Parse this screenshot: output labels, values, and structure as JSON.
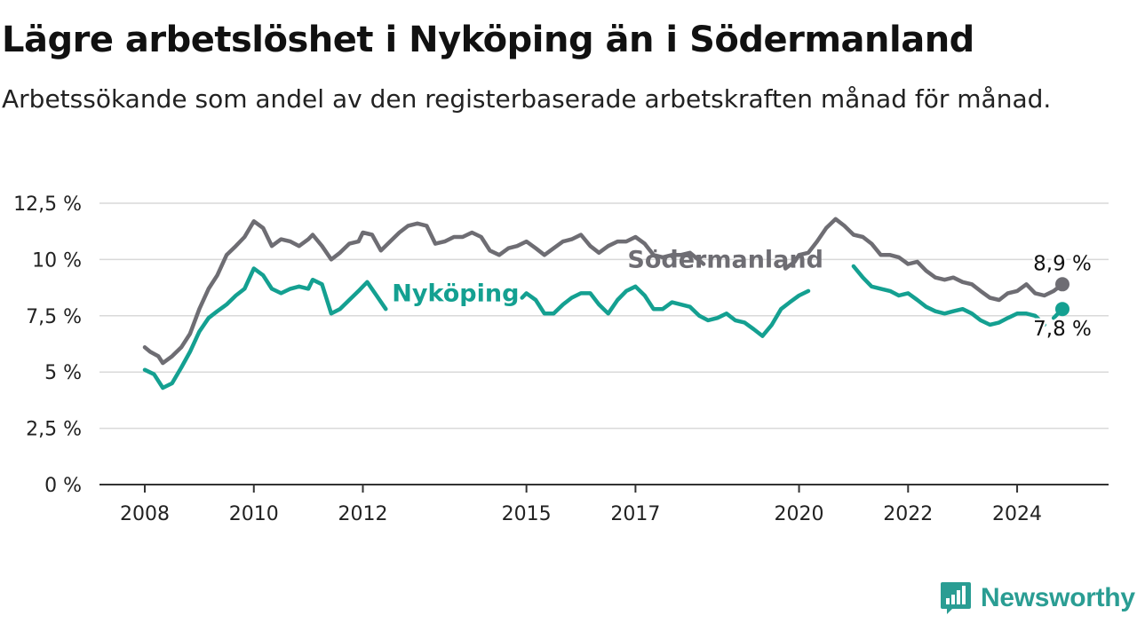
{
  "header": {
    "title": "Lägre arbetslöshet i Nyköping än i Södermanland",
    "subtitle": "Arbetssökande som andel av den registerbaserade arbetskraften månad för månad."
  },
  "brand": {
    "name": "Newsworthy",
    "color": "#2a9d93",
    "icon": "bar-chart-speech-bubble-icon"
  },
  "colors": {
    "sodermanland": "#6e6d73",
    "nykoping": "#14a091",
    "grid": "#d9d9d9",
    "axis": "#333333"
  },
  "chart_data": {
    "type": "line",
    "xlim": [
      2008,
      2025
    ],
    "ylim": [
      0,
      12.5
    ],
    "y_ticks": [
      0,
      2.5,
      5,
      7.5,
      10,
      12.5
    ],
    "y_tick_labels": [
      "0 %",
      "2,5 %",
      "5 %",
      "7,5 %",
      "10 %",
      "12,5 %"
    ],
    "x_ticks": [
      2008,
      2010,
      2012,
      2015,
      2017,
      2020,
      2022,
      2024
    ],
    "x_tick_labels": [
      "2008",
      "2010",
      "2012",
      "2015",
      "2017",
      "2020",
      "2022",
      "2024"
    ],
    "grid": "horizontal",
    "series": [
      {
        "name": "Södermanland",
        "color_key": "sodermanland",
        "end_label": "8,9 %",
        "points": [
          [
            2008.0,
            6.1
          ],
          [
            2008.1,
            5.9
          ],
          [
            2008.25,
            5.7
          ],
          [
            2008.33,
            5.4
          ],
          [
            2008.5,
            5.7
          ],
          [
            2008.67,
            6.1
          ],
          [
            2008.83,
            6.7
          ],
          [
            2009.0,
            7.8
          ],
          [
            2009.17,
            8.7
          ],
          [
            2009.33,
            9.3
          ],
          [
            2009.5,
            10.2
          ],
          [
            2009.67,
            10.6
          ],
          [
            2009.83,
            11.0
          ],
          [
            2010.0,
            11.7
          ],
          [
            2010.17,
            11.4
          ],
          [
            2010.33,
            10.6
          ],
          [
            2010.5,
            10.9
          ],
          [
            2010.67,
            10.8
          ],
          [
            2010.83,
            10.6
          ],
          [
            2011.0,
            10.9
          ],
          [
            2011.08,
            11.1
          ],
          [
            2011.25,
            10.6
          ],
          [
            2011.42,
            10.0
          ],
          [
            2011.58,
            10.3
          ],
          [
            2011.75,
            10.7
          ],
          [
            2011.92,
            10.8
          ],
          [
            2012.0,
            11.2
          ],
          [
            2012.17,
            11.1
          ],
          [
            2012.33,
            10.4
          ],
          [
            2012.5,
            10.8
          ],
          [
            2012.67,
            11.2
          ],
          [
            2012.83,
            11.5
          ],
          [
            2013.0,
            11.6
          ],
          [
            2013.17,
            11.5
          ],
          [
            2013.33,
            10.7
          ],
          [
            2013.5,
            10.8
          ],
          [
            2013.67,
            11.0
          ],
          [
            2013.83,
            11.0
          ],
          [
            2014.0,
            11.2
          ],
          [
            2014.17,
            11.0
          ],
          [
            2014.33,
            10.4
          ],
          [
            2014.5,
            10.2
          ],
          [
            2014.67,
            10.5
          ],
          [
            2014.83,
            10.6
          ],
          [
            2015.0,
            10.8
          ],
          [
            2015.17,
            10.5
          ],
          [
            2015.33,
            10.2
          ],
          [
            2015.5,
            10.5
          ],
          [
            2015.67,
            10.8
          ],
          [
            2015.83,
            10.9
          ],
          [
            2016.0,
            11.1
          ],
          [
            2016.17,
            10.6
          ],
          [
            2016.33,
            10.3
          ],
          [
            2016.5,
            10.6
          ],
          [
            2016.67,
            10.8
          ],
          [
            2016.83,
            10.8
          ],
          [
            2017.0,
            11.0
          ],
          [
            2017.17,
            10.7
          ],
          [
            2017.33,
            10.2
          ],
          [
            2017.5,
            10.1
          ],
          [
            2017.67,
            10.2
          ],
          [
            2017.83,
            10.2
          ],
          [
            2018.0,
            10.3
          ],
          [
            2018.1,
            10.1
          ],
          [
            2018.25,
            9.8
          ],
          null,
          [
            2019.75,
            9.6
          ],
          [
            2019.92,
            9.9
          ],
          [
            2020.0,
            10.2
          ],
          [
            2020.17,
            10.3
          ],
          [
            2020.33,
            10.8
          ],
          [
            2020.5,
            11.4
          ],
          [
            2020.67,
            11.8
          ],
          [
            2020.83,
            11.5
          ],
          [
            2021.0,
            11.1
          ],
          [
            2021.17,
            11.0
          ],
          [
            2021.33,
            10.7
          ],
          [
            2021.5,
            10.2
          ],
          [
            2021.67,
            10.2
          ],
          [
            2021.83,
            10.1
          ],
          [
            2022.0,
            9.8
          ],
          [
            2022.17,
            9.9
          ],
          [
            2022.33,
            9.5
          ],
          [
            2022.5,
            9.2
          ],
          [
            2022.67,
            9.1
          ],
          [
            2022.83,
            9.2
          ],
          [
            2023.0,
            9.0
          ],
          [
            2023.17,
            8.9
          ],
          [
            2023.33,
            8.6
          ],
          [
            2023.5,
            8.3
          ],
          [
            2023.67,
            8.2
          ],
          [
            2023.83,
            8.5
          ],
          [
            2024.0,
            8.6
          ],
          [
            2024.17,
            8.9
          ],
          [
            2024.33,
            8.5
          ],
          [
            2024.5,
            8.4
          ],
          [
            2024.67,
            8.6
          ],
          [
            2024.83,
            8.9
          ]
        ]
      },
      {
        "name": "Nyköping",
        "color_key": "nykoping",
        "end_label": "7,8 %",
        "points": [
          [
            2008.0,
            5.1
          ],
          [
            2008.17,
            4.9
          ],
          [
            2008.33,
            4.3
          ],
          [
            2008.5,
            4.5
          ],
          [
            2008.67,
            5.2
          ],
          [
            2008.83,
            5.9
          ],
          [
            2009.0,
            6.8
          ],
          [
            2009.17,
            7.4
          ],
          [
            2009.33,
            7.7
          ],
          [
            2009.5,
            8.0
          ],
          [
            2009.67,
            8.4
          ],
          [
            2009.83,
            8.7
          ],
          [
            2010.0,
            9.6
          ],
          [
            2010.17,
            9.3
          ],
          [
            2010.33,
            8.7
          ],
          [
            2010.5,
            8.5
          ],
          [
            2010.67,
            8.7
          ],
          [
            2010.83,
            8.8
          ],
          [
            2011.0,
            8.7
          ],
          [
            2011.08,
            9.1
          ],
          [
            2011.25,
            8.9
          ],
          [
            2011.42,
            7.6
          ],
          [
            2011.58,
            7.8
          ],
          [
            2011.75,
            8.2
          ],
          [
            2011.92,
            8.6
          ],
          [
            2012.0,
            8.8
          ],
          [
            2012.08,
            9.0
          ],
          [
            2012.25,
            8.4
          ],
          [
            2012.42,
            7.8
          ],
          null,
          [
            2014.92,
            8.3
          ],
          [
            2015.0,
            8.5
          ],
          [
            2015.17,
            8.2
          ],
          [
            2015.33,
            7.6
          ],
          [
            2015.5,
            7.6
          ],
          [
            2015.67,
            8.0
          ],
          [
            2015.83,
            8.3
          ],
          [
            2016.0,
            8.5
          ],
          [
            2016.17,
            8.5
          ],
          [
            2016.33,
            8.0
          ],
          [
            2016.5,
            7.6
          ],
          [
            2016.67,
            8.2
          ],
          [
            2016.83,
            8.6
          ],
          [
            2017.0,
            8.8
          ],
          [
            2017.17,
            8.4
          ],
          [
            2017.33,
            7.8
          ],
          [
            2017.5,
            7.8
          ],
          [
            2017.67,
            8.1
          ],
          [
            2017.83,
            8.0
          ],
          [
            2018.0,
            7.9
          ],
          [
            2018.17,
            7.5
          ],
          [
            2018.33,
            7.3
          ],
          [
            2018.5,
            7.4
          ],
          [
            2018.67,
            7.6
          ],
          [
            2018.83,
            7.3
          ],
          [
            2019.0,
            7.2
          ],
          [
            2019.17,
            6.9
          ],
          [
            2019.33,
            6.6
          ],
          [
            2019.5,
            7.1
          ],
          [
            2019.67,
            7.8
          ],
          [
            2019.83,
            8.1
          ],
          [
            2020.0,
            8.4
          ],
          [
            2020.17,
            8.6
          ],
          null,
          [
            2021.0,
            9.7
          ],
          [
            2021.17,
            9.2
          ],
          [
            2021.33,
            8.8
          ],
          [
            2021.5,
            8.7
          ],
          [
            2021.67,
            8.6
          ],
          [
            2021.83,
            8.4
          ],
          [
            2022.0,
            8.5
          ],
          [
            2022.17,
            8.2
          ],
          [
            2022.33,
            7.9
          ],
          [
            2022.5,
            7.7
          ],
          [
            2022.67,
            7.6
          ],
          [
            2022.83,
            7.7
          ],
          [
            2023.0,
            7.8
          ],
          [
            2023.17,
            7.6
          ],
          [
            2023.33,
            7.3
          ],
          [
            2023.5,
            7.1
          ],
          [
            2023.67,
            7.2
          ],
          [
            2023.83,
            7.4
          ],
          [
            2024.0,
            7.6
          ],
          [
            2024.17,
            7.6
          ],
          [
            2024.33,
            7.5
          ],
          [
            2024.5,
            7.1
          ],
          null,
          [
            2024.67,
            7.4
          ],
          [
            2024.83,
            7.8
          ]
        ]
      }
    ],
    "annotations": [
      {
        "text": "Södermanland",
        "series": "Södermanland",
        "x": 2018.65,
        "y": 9.65
      },
      {
        "text": "Nyköping",
        "series": "Nyköping",
        "x": 2013.7,
        "y": 8.15
      }
    ]
  }
}
